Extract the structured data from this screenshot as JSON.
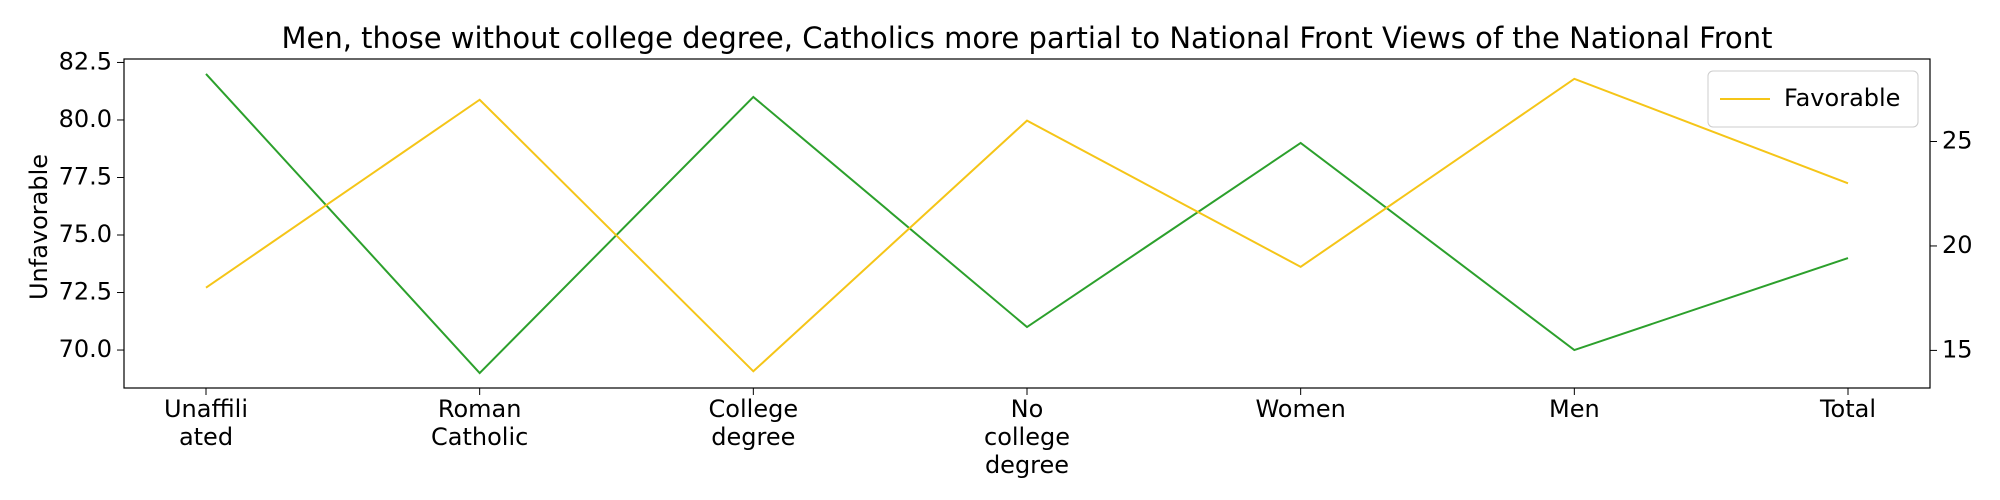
{
  "chart_data": {
    "type": "line",
    "title": "Men, those without college degree, Catholics more partial to National Front Views of the National Front",
    "ylabel": "Unfavorable",
    "categories": [
      "Unaffili\nated",
      "Roman\nCatholic",
      "College\ndegree",
      "No\ncollege\ndegree",
      "Women",
      "Men",
      "Total"
    ],
    "series": [
      {
        "color": "#2ca02c",
        "values": [
          82,
          69,
          81,
          71,
          79,
          70,
          74
        ]
      },
      {
        "name": "Favorable",
        "color": "#f5c518",
        "axis": "y2",
        "values": [
          18,
          27,
          14,
          26,
          19,
          28,
          23
        ]
      }
    ],
    "ylim": [
      68.35,
      82.65
    ],
    "yticks": [
      {
        "value": 70,
        "label": "70.0"
      },
      {
        "value": 72.5,
        "label": "72.5"
      },
      {
        "value": 75,
        "label": "75.0"
      },
      {
        "value": 77.5,
        "label": "77.5"
      },
      {
        "value": 80,
        "label": "80.0"
      },
      {
        "value": 82.5,
        "label": "82.5"
      }
    ],
    "y2lim": [
      13.2,
      28.95
    ],
    "y2ticks": [
      15,
      20,
      25
    ],
    "legend": "upper right"
  }
}
